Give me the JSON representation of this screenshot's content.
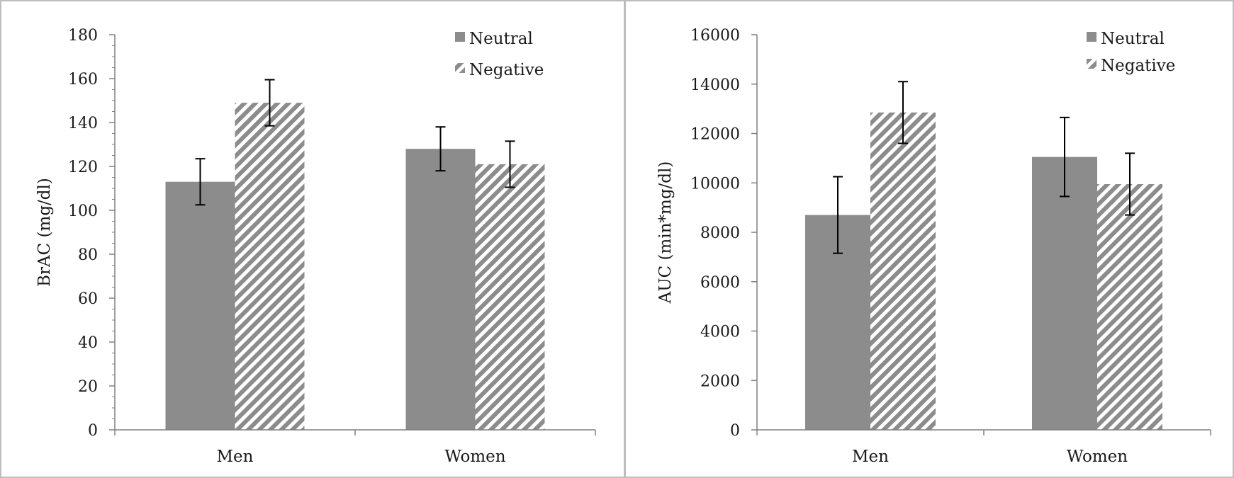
{
  "colors": {
    "neutral": "#8c8c8c",
    "negative_stripe": "#8c8c8c",
    "axis": "#808080",
    "errorbar": "#000000"
  },
  "chart_data": [
    {
      "type": "bar",
      "categories": [
        "Men",
        "Women"
      ],
      "ylabel": "BrAC (mg/dl)",
      "xlabel": "",
      "ylim": [
        0,
        180
      ],
      "yticks": [
        0,
        20,
        40,
        60,
        80,
        100,
        120,
        140,
        160,
        180
      ],
      "legend_position": "top-right",
      "grid": false,
      "series": [
        {
          "name": "Neutral",
          "pattern": "solid",
          "values": [
            113,
            128
          ],
          "error": [
            10.5,
            10
          ]
        },
        {
          "name": "Negative",
          "pattern": "striped",
          "values": [
            149,
            121
          ],
          "error": [
            10.5,
            10.5
          ]
        }
      ]
    },
    {
      "type": "bar",
      "categories": [
        "Men",
        "Women"
      ],
      "ylabel": "AUC (min*mg/dl)",
      "xlabel": "",
      "ylim": [
        0,
        16000
      ],
      "yticks": [
        0,
        2000,
        4000,
        6000,
        8000,
        10000,
        12000,
        14000,
        16000
      ],
      "legend_position": "top-right",
      "grid": false,
      "series": [
        {
          "name": "Neutral",
          "pattern": "solid",
          "values": [
            8700,
            11050
          ],
          "error": [
            1550,
            1600
          ]
        },
        {
          "name": "Negative",
          "pattern": "striped",
          "values": [
            12850,
            9950
          ],
          "error": [
            1250,
            1250
          ]
        }
      ]
    }
  ]
}
